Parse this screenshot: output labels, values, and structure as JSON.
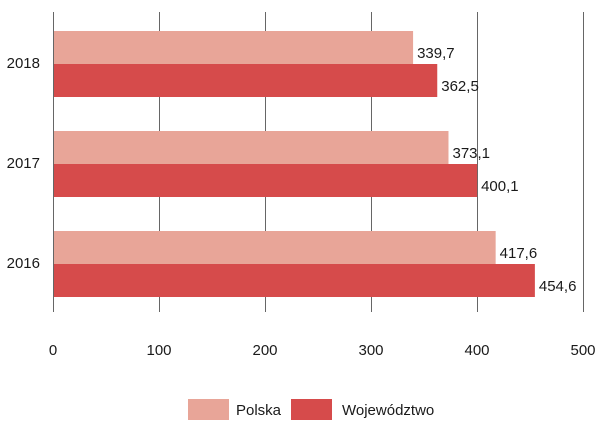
{
  "chart_data": {
    "type": "bar",
    "orientation": "horizontal",
    "categories": [
      "2016",
      "2017",
      "2018"
    ],
    "series": [
      {
        "name": "Polska",
        "values": [
          417.6,
          373.1,
          339.7
        ],
        "labels": [
          "417,6",
          "373,1",
          "339,7"
        ],
        "color": "#e8a598"
      },
      {
        "name": "Województwo",
        "values": [
          454.6,
          400.1,
          362.5
        ],
        "labels": [
          "454,6",
          "400,1",
          "362,5"
        ],
        "color": "#d64b4b"
      }
    ],
    "xlim": [
      0,
      500
    ],
    "xticks": [
      0,
      100,
      200,
      300,
      400,
      500
    ],
    "grid": "vertical",
    "legend_position": "bottom"
  }
}
